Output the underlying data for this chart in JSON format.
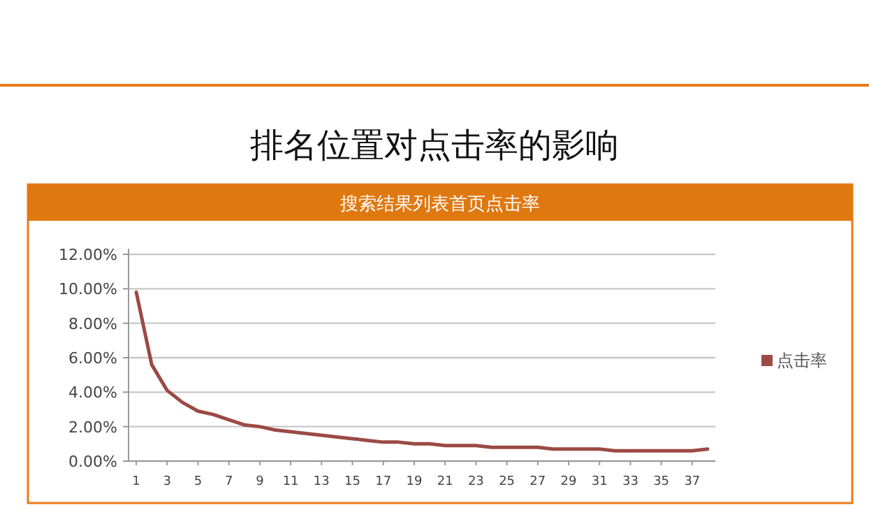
{
  "chart_data": {
    "type": "line",
    "title": "排名位置对点击率的影响",
    "subtitle": "搜索结果列表首页点击率",
    "x": [
      1,
      2,
      3,
      4,
      5,
      6,
      7,
      8,
      9,
      10,
      11,
      12,
      13,
      14,
      15,
      16,
      17,
      18,
      19,
      20,
      21,
      22,
      23,
      24,
      25,
      26,
      27,
      28,
      29,
      30,
      31,
      32,
      33,
      34,
      35,
      36,
      37,
      38
    ],
    "series": [
      {
        "name": "点击率",
        "color": "#9b4a45",
        "values": [
          9.8,
          5.6,
          4.1,
          3.4,
          2.9,
          2.7,
          2.4,
          2.1,
          2.0,
          1.8,
          1.7,
          1.6,
          1.5,
          1.4,
          1.3,
          1.2,
          1.1,
          1.1,
          1.0,
          1.0,
          0.9,
          0.9,
          0.9,
          0.8,
          0.8,
          0.8,
          0.8,
          0.7,
          0.7,
          0.7,
          0.7,
          0.6,
          0.6,
          0.6,
          0.6,
          0.6,
          0.6,
          0.7
        ]
      }
    ],
    "xlim": [
      0.5,
      38.5
    ],
    "xticks": [
      1,
      3,
      5,
      7,
      9,
      11,
      13,
      15,
      17,
      19,
      21,
      23,
      25,
      27,
      29,
      31,
      33,
      35,
      37
    ],
    "ylim": [
      0,
      12
    ],
    "yticks": [
      {
        "value": 0,
        "label": "0.00%"
      },
      {
        "value": 2,
        "label": "2.00%"
      },
      {
        "value": 4,
        "label": "4.00%"
      },
      {
        "value": 6,
        "label": "6.00%"
      },
      {
        "value": 8,
        "label": "8.00%"
      },
      {
        "value": 10,
        "label": "10.00%"
      },
      {
        "value": 12,
        "label": "12.00%"
      }
    ],
    "grid": "y",
    "legend": "right",
    "marker": "none",
    "line_style": "solid"
  }
}
